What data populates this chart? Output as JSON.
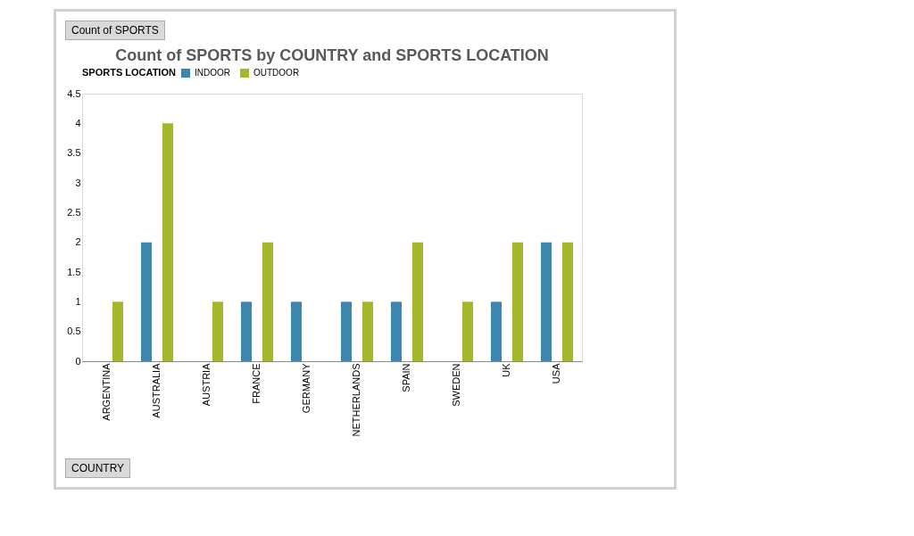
{
  "chart_data": {
    "type": "bar",
    "title": "Count of SPORTS by COUNTRY and SPORTS LOCATION",
    "legend_title": "SPORTS LOCATION",
    "annotations": [
      "Count of SPORTS",
      "COUNTRY"
    ],
    "categories": [
      "ARGENTINA",
      "AUSTRALIA",
      "AUSTRIA",
      "FRANCE",
      "GERMANY",
      "NETHERLANDS",
      "SPAIN",
      "SWEDEN",
      "UK",
      "USA"
    ],
    "series": [
      {
        "name": "INDOOR",
        "color": "#3b87b0",
        "values": [
          null,
          2,
          null,
          1,
          1,
          1,
          1,
          null,
          1,
          2
        ]
      },
      {
        "name": "OUTDOOR",
        "color": "#a5b82c",
        "values": [
          1,
          4,
          1,
          2,
          null,
          1,
          2,
          1,
          2,
          2
        ]
      }
    ],
    "ylim": [
      0,
      4.5
    ],
    "yticks": [
      0,
      0.5,
      1,
      1.5,
      2,
      2.5,
      3,
      3.5,
      4,
      4.5
    ],
    "grid": false,
    "legend": "top"
  }
}
